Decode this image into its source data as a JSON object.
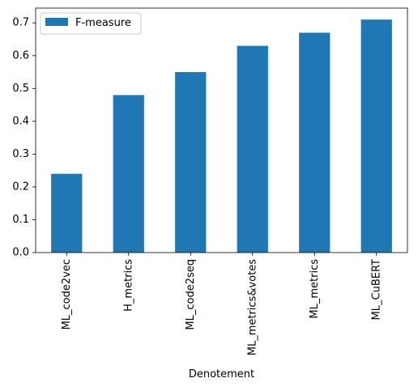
{
  "chart_data": {
    "type": "bar",
    "title": "",
    "xlabel": "Denotement",
    "ylabel": "",
    "categories": [
      "ML_code2vec",
      "H_metrics",
      "ML_code2seq",
      "ML_metrics&votes",
      "ML_metrics",
      "ML_CuBERT"
    ],
    "series": [
      {
        "name": "F-measure",
        "values": [
          0.24,
          0.48,
          0.55,
          0.63,
          0.67,
          0.71
        ],
        "color": "#1f77b4"
      }
    ],
    "ylim": [
      0,
      0.745
    ],
    "yticks": [
      0.0,
      0.1,
      0.2,
      0.3,
      0.4,
      0.5,
      0.6,
      0.7
    ],
    "ytick_labels": [
      "0.0",
      "0.1",
      "0.2",
      "0.3",
      "0.4",
      "0.5",
      "0.6",
      "0.7"
    ],
    "grid": false,
    "legend_position": "top-left"
  }
}
